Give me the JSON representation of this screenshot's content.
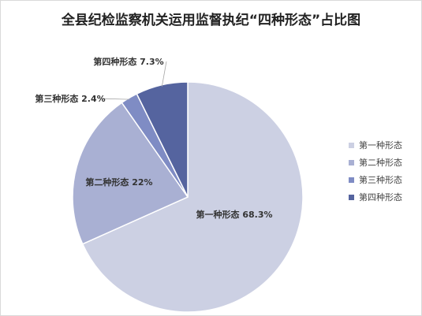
{
  "chart_data": {
    "type": "pie",
    "title": "全县纪检监察机关运用监督执纪“四种形态”占比图",
    "categories": [
      "第一种形态",
      "第二种形态",
      "第三种形态",
      "第四种形态"
    ],
    "values": [
      68.3,
      22,
      2.4,
      7.3
    ],
    "data_labels": [
      "第一种形态 68.3%",
      "第二种形态 22%",
      "第三种形态 2.4%",
      "第四种形态 7.3%"
    ],
    "colors": [
      "#ccd0e3",
      "#a9b0d3",
      "#7f8cc4",
      "#55649f"
    ],
    "start_angle_deg": 0,
    "direction": "clockwise",
    "legend_position": "right",
    "grid": false
  }
}
